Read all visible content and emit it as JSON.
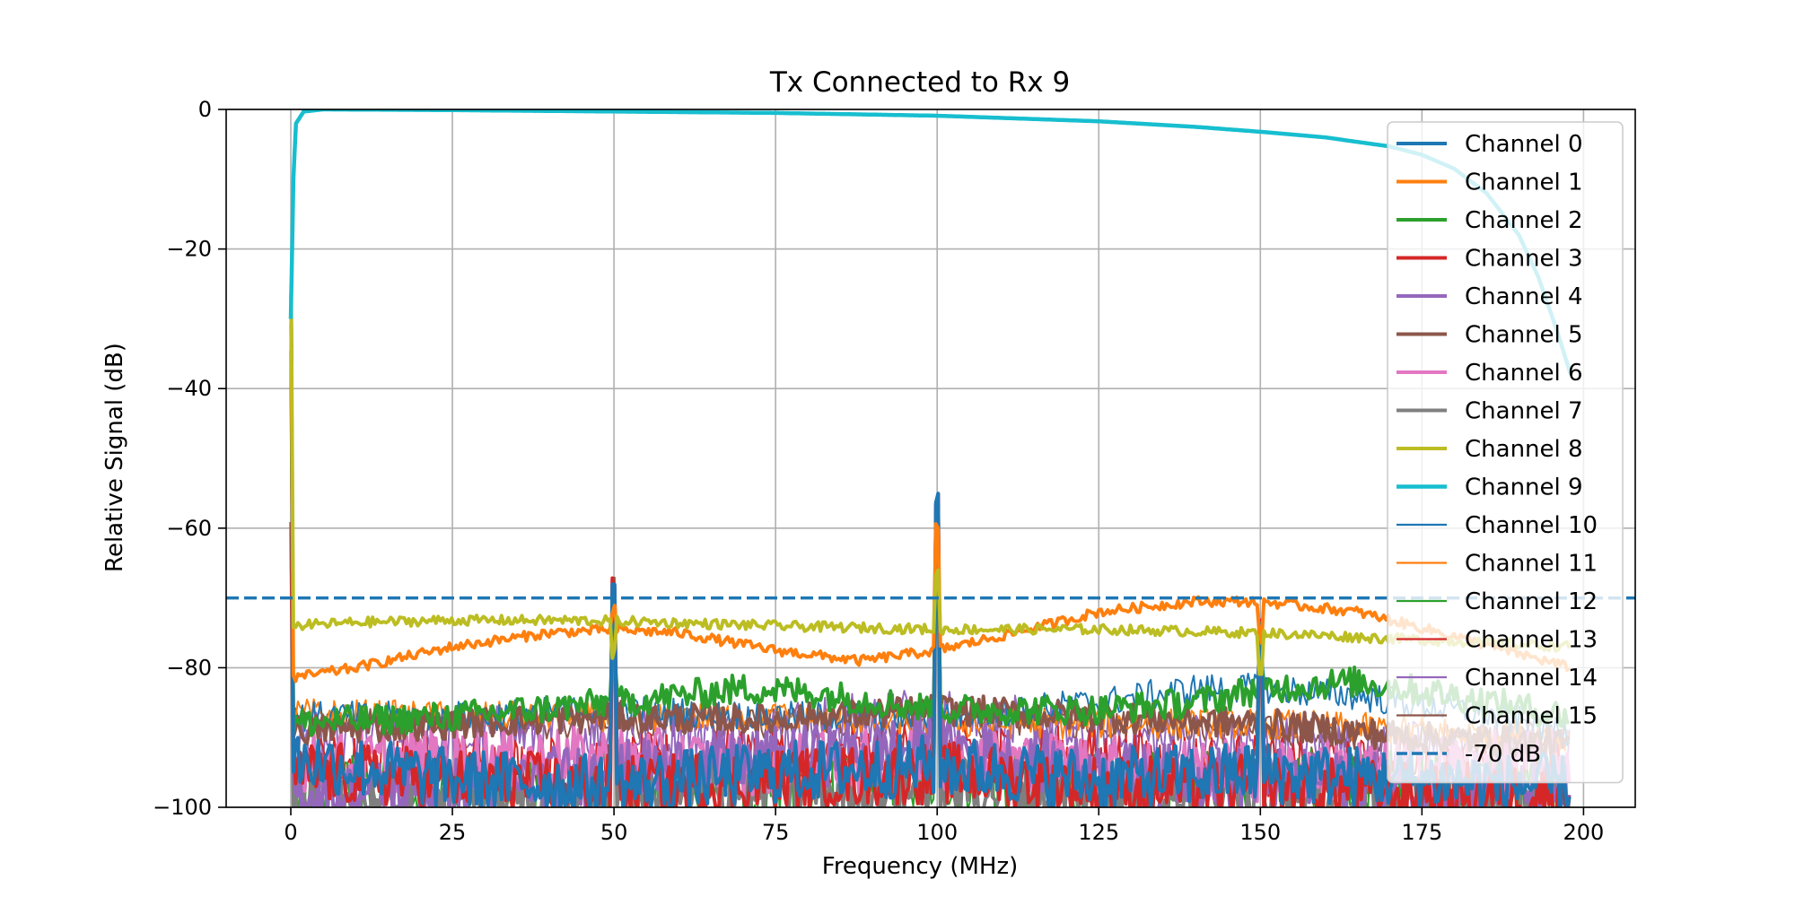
{
  "chart_data": {
    "type": "line",
    "title": "Tx Connected to Rx 9",
    "xlabel": "Frequency (MHz)",
    "ylabel": "Relative Signal (dB)",
    "xlim": [
      -10,
      208
    ],
    "ylim": [
      -100,
      0
    ],
    "x_ticks": [
      0,
      25,
      50,
      75,
      100,
      125,
      150,
      175,
      200
    ],
    "y_ticks": [
      -100,
      -80,
      -60,
      -40,
      -20,
      0
    ],
    "x_tick_labels": [
      "0",
      "25",
      "50",
      "75",
      "100",
      "125",
      "150",
      "175",
      "200"
    ],
    "y_tick_labels": [
      "−100",
      "−80",
      "−60",
      "−40",
      "−20",
      "0"
    ],
    "grid": true,
    "legend_position": "upper-right",
    "threshold": {
      "name": "-70 dB",
      "value": -70,
      "color": "#1f77b4",
      "style": "dashed"
    },
    "series": [
      {
        "name": "Channel 0",
        "color": "#1f77b4",
        "width": 4,
        "points": [
          [
            0,
            -93
          ],
          [
            25,
            -96
          ],
          [
            50,
            -97
          ],
          [
            75,
            -95
          ],
          [
            100,
            -94
          ],
          [
            125,
            -96
          ],
          [
            150,
            -95
          ],
          [
            175,
            -96
          ],
          [
            198,
            -97
          ]
        ]
      },
      {
        "name": "Channel 1",
        "color": "#ff7f0e",
        "width": 4,
        "points": [
          [
            0,
            -81.5
          ],
          [
            10,
            -80
          ],
          [
            25,
            -77
          ],
          [
            40,
            -75
          ],
          [
            50,
            -74.5
          ],
          [
            60,
            -75
          ],
          [
            75,
            -77.5
          ],
          [
            88,
            -79
          ],
          [
            100,
            -77.5
          ],
          [
            112,
            -75
          ],
          [
            125,
            -72
          ],
          [
            140,
            -70.5
          ],
          [
            150,
            -70.5
          ],
          [
            165,
            -72
          ],
          [
            178,
            -75
          ],
          [
            190,
            -78
          ],
          [
            198,
            -80
          ]
        ]
      },
      {
        "name": "Channel 2",
        "color": "#2ca02c",
        "width": 4,
        "points": [
          [
            0,
            -88
          ],
          [
            25,
            -87
          ],
          [
            50,
            -85
          ],
          [
            60,
            -84
          ],
          [
            70,
            -83
          ],
          [
            80,
            -83.5
          ],
          [
            100,
            -86
          ],
          [
            125,
            -86
          ],
          [
            140,
            -85
          ],
          [
            150,
            -83
          ],
          [
            165,
            -82
          ],
          [
            180,
            -84
          ],
          [
            198,
            -87
          ]
        ]
      },
      {
        "name": "Channel 3",
        "color": "#d62728",
        "width": 4,
        "points": [
          [
            0,
            -95
          ],
          [
            25,
            -96
          ],
          [
            50,
            -97
          ],
          [
            75,
            -96
          ],
          [
            100,
            -95
          ],
          [
            125,
            -97
          ],
          [
            150,
            -97
          ],
          [
            175,
            -98
          ],
          [
            198,
            -98
          ]
        ]
      },
      {
        "name": "Channel 4",
        "color": "#9467bd",
        "width": 4,
        "points": [
          [
            0,
            -98
          ],
          [
            25,
            -97
          ],
          [
            50,
            -95
          ],
          [
            75,
            -93
          ],
          [
            90,
            -92
          ],
          [
            100,
            -91
          ],
          [
            125,
            -95
          ],
          [
            150,
            -96
          ],
          [
            175,
            -97
          ],
          [
            198,
            -98
          ]
        ]
      },
      {
        "name": "Channel 5",
        "color": "#8c564b",
        "width": 4,
        "points": [
          [
            0,
            -89
          ],
          [
            25,
            -88
          ],
          [
            50,
            -87
          ],
          [
            75,
            -87.5
          ],
          [
            100,
            -86
          ],
          [
            125,
            -87
          ],
          [
            150,
            -88
          ],
          [
            175,
            -90
          ],
          [
            198,
            -91
          ]
        ]
      },
      {
        "name": "Channel 6",
        "color": "#e377c2",
        "width": 4,
        "points": [
          [
            0,
            -94
          ],
          [
            25,
            -93
          ],
          [
            50,
            -93
          ],
          [
            75,
            -94
          ],
          [
            100,
            -93
          ],
          [
            125,
            -94
          ],
          [
            150,
            -95
          ],
          [
            175,
            -94
          ],
          [
            198,
            -93
          ]
        ]
      },
      {
        "name": "Channel 7",
        "color": "#7f7f7f",
        "width": 4,
        "points": [
          [
            0,
            -99
          ],
          [
            25,
            -99
          ],
          [
            50,
            -98.5
          ],
          [
            75,
            -98
          ],
          [
            100,
            -97
          ],
          [
            125,
            -98
          ],
          [
            150,
            -98.5
          ],
          [
            175,
            -99
          ],
          [
            198,
            -99
          ]
        ]
      },
      {
        "name": "Channel 8",
        "color": "#bcbd22",
        "width": 4,
        "points": [
          [
            0,
            -74
          ],
          [
            10,
            -73.5
          ],
          [
            25,
            -73.2
          ],
          [
            40,
            -73.2
          ],
          [
            50,
            -73.3
          ],
          [
            75,
            -74
          ],
          [
            100,
            -74.5
          ],
          [
            125,
            -74.5
          ],
          [
            150,
            -75
          ],
          [
            175,
            -76
          ],
          [
            198,
            -77
          ]
        ]
      },
      {
        "name": "Channel 9",
        "color": "#17becf",
        "width": 4.5,
        "points": [
          [
            0,
            -30
          ],
          [
            0.4,
            -10
          ],
          [
            0.8,
            -2
          ],
          [
            2,
            -0.3
          ],
          [
            5,
            0
          ],
          [
            25,
            -0.1
          ],
          [
            50,
            -0.3
          ],
          [
            75,
            -0.5
          ],
          [
            100,
            -0.9
          ],
          [
            125,
            -1.7
          ],
          [
            140,
            -2.5
          ],
          [
            150,
            -3.2
          ],
          [
            160,
            -4
          ],
          [
            170,
            -5.3
          ],
          [
            175,
            -6.5
          ],
          [
            180,
            -8.5
          ],
          [
            185,
            -12
          ],
          [
            190,
            -18
          ],
          [
            193,
            -24
          ],
          [
            196,
            -32
          ],
          [
            198,
            -38
          ]
        ]
      },
      {
        "name": "Channel 10",
        "color": "#1f77b4",
        "width": 2,
        "points": [
          [
            0,
            -87
          ],
          [
            25,
            -87
          ],
          [
            50,
            -86
          ],
          [
            75,
            -87
          ],
          [
            100,
            -87
          ],
          [
            125,
            -85
          ],
          [
            140,
            -83
          ],
          [
            150,
            -83
          ],
          [
            165,
            -84
          ],
          [
            180,
            -86
          ],
          [
            198,
            -89
          ]
        ]
      },
      {
        "name": "Channel 11",
        "color": "#ff7f0e",
        "width": 2,
        "points": [
          [
            0,
            -86.5
          ],
          [
            25,
            -87
          ],
          [
            50,
            -87
          ],
          [
            75,
            -87
          ],
          [
            100,
            -88
          ],
          [
            125,
            -88
          ],
          [
            150,
            -88
          ],
          [
            175,
            -89
          ],
          [
            198,
            -90
          ]
        ]
      },
      {
        "name": "Channel 12",
        "color": "#2ca02c",
        "width": 2,
        "points": [
          [
            0,
            -97
          ],
          [
            25,
            -97
          ],
          [
            50,
            -96
          ],
          [
            75,
            -97
          ],
          [
            100,
            -96
          ],
          [
            125,
            -97
          ],
          [
            150,
            -96
          ],
          [
            175,
            -96
          ],
          [
            198,
            -97
          ]
        ]
      },
      {
        "name": "Channel 13",
        "color": "#d62728",
        "width": 2,
        "points": [
          [
            0,
            -94
          ],
          [
            25,
            -94
          ],
          [
            50,
            -94
          ],
          [
            75,
            -93
          ],
          [
            100,
            -92
          ],
          [
            125,
            -93
          ],
          [
            150,
            -94
          ],
          [
            175,
            -95
          ],
          [
            198,
            -95
          ]
        ]
      },
      {
        "name": "Channel 14",
        "color": "#9467bd",
        "width": 2,
        "points": [
          [
            0,
            -91
          ],
          [
            25,
            -90
          ],
          [
            50,
            -89
          ],
          [
            75,
            -89
          ],
          [
            100,
            -87
          ],
          [
            125,
            -90
          ],
          [
            150,
            -91
          ],
          [
            175,
            -92
          ],
          [
            198,
            -93
          ]
        ]
      },
      {
        "name": "Channel 15",
        "color": "#8c564b",
        "width": 2,
        "points": [
          [
            0,
            -88
          ],
          [
            25,
            -88
          ],
          [
            50,
            -88
          ],
          [
            75,
            -88
          ],
          [
            100,
            -88
          ],
          [
            125,
            -88
          ],
          [
            150,
            -89
          ],
          [
            175,
            -90
          ],
          [
            198,
            -90
          ]
        ]
      }
    ],
    "spikes": [
      {
        "x": 0,
        "peaks": [
          -26,
          -30,
          -34,
          -60
        ]
      },
      {
        "x": 50,
        "peaks": [
          -68,
          -72,
          -78
        ]
      },
      {
        "x": 100,
        "peaks": [
          -56,
          -60,
          -66
        ]
      },
      {
        "x": 150,
        "peaks": [
          -74,
          -76,
          -80
        ]
      }
    ]
  }
}
